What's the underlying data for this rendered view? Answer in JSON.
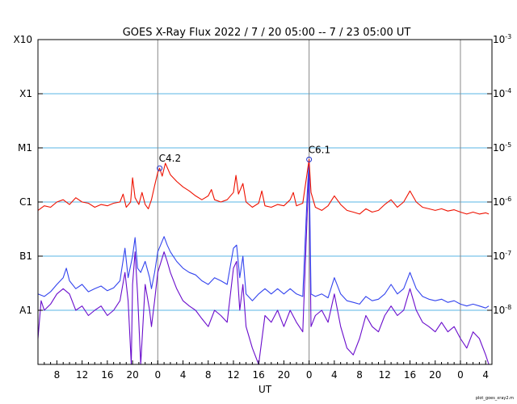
{
  "chart_data": {
    "type": "line",
    "title": "GOES X-Ray Flux   2022  /  7  /  20   05:00 --  7  /  23   05:00   UT",
    "xlabel": "UT",
    "ylabel": "",
    "y_scale": "log",
    "ylim": [
      1e-09,
      0.001
    ],
    "xlim_hours": [
      0,
      72
    ],
    "left_axis_labels": [
      "X10",
      "X1",
      "M1",
      "C1",
      "B1",
      "A1"
    ],
    "left_axis_values": [
      0.001,
      0.0001,
      1e-05,
      1e-06,
      1e-07,
      1e-08
    ],
    "right_axis_labels": [
      {
        "base": "10",
        "exp": "-3",
        "value": 0.001
      },
      {
        "base": "10",
        "exp": "-4",
        "value": 0.0001
      },
      {
        "base": "10",
        "exp": "-5",
        "value": 1e-05
      },
      {
        "base": "10",
        "exp": "-6",
        "value": 1e-06
      },
      {
        "base": "10",
        "exp": "-7",
        "value": 1e-07
      },
      {
        "base": "10",
        "exp": "-8",
        "value": 1e-08
      }
    ],
    "x_tick_labels": [
      {
        "h": 3,
        "label": "8"
      },
      {
        "h": 7,
        "label": "12"
      },
      {
        "h": 11,
        "label": "16"
      },
      {
        "h": 15,
        "label": "20"
      },
      {
        "h": 19,
        "label": "0"
      },
      {
        "h": 23,
        "label": "4"
      },
      {
        "h": 27,
        "label": "8"
      },
      {
        "h": 31,
        "label": "12"
      },
      {
        "h": 35,
        "label": "16"
      },
      {
        "h": 39,
        "label": "20"
      },
      {
        "h": 43,
        "label": "0"
      },
      {
        "h": 47,
        "label": "4"
      },
      {
        "h": 51,
        "label": "8"
      },
      {
        "h": 55,
        "label": "12"
      },
      {
        "h": 59,
        "label": "16"
      },
      {
        "h": 63,
        "label": "20"
      },
      {
        "h": 67,
        "label": "0"
      },
      {
        "h": 71,
        "label": "4"
      }
    ],
    "day_boundaries_hours": [
      19,
      43,
      67
    ],
    "annotations": [
      {
        "label": "C4.2",
        "h": 19.3,
        "value": 4.2e-06
      },
      {
        "label": "C6.1",
        "h": 43.0,
        "value": 6.1e-06
      }
    ],
    "series": [
      {
        "name": "",
        "color": "#ee1100",
        "points": [
          [
            0,
            7e-07
          ],
          [
            1,
            8.5e-07
          ],
          [
            2,
            8e-07
          ],
          [
            3,
            1e-06
          ],
          [
            4,
            1.1e-06
          ],
          [
            5,
            9e-07
          ],
          [
            6,
            1.2e-06
          ],
          [
            7,
            1e-06
          ],
          [
            8,
            9.5e-07
          ],
          [
            9,
            8e-07
          ],
          [
            10,
            9e-07
          ],
          [
            11,
            8.5e-07
          ],
          [
            12,
            9.5e-07
          ],
          [
            13,
            1e-06
          ],
          [
            13.5,
            1.4e-06
          ],
          [
            14,
            8e-07
          ],
          [
            14.7,
            1e-06
          ],
          [
            15,
            2.8e-06
          ],
          [
            15.4,
            1.2e-06
          ],
          [
            16,
            9e-07
          ],
          [
            16.5,
            1.5e-06
          ],
          [
            17,
            9e-07
          ],
          [
            17.5,
            7.5e-07
          ],
          [
            18,
            1.1e-06
          ],
          [
            18.5,
            2e-06
          ],
          [
            19,
            3.5e-06
          ],
          [
            19.3,
            4.2e-06
          ],
          [
            19.7,
            3e-06
          ],
          [
            20.2,
            5.2e-06
          ],
          [
            21,
            3.2e-06
          ],
          [
            22,
            2.4e-06
          ],
          [
            23,
            1.9e-06
          ],
          [
            24,
            1.6e-06
          ],
          [
            25,
            1.3e-06
          ],
          [
            26,
            1.1e-06
          ],
          [
            27,
            1.3e-06
          ],
          [
            27.5,
            1.7e-06
          ],
          [
            28,
            1.1e-06
          ],
          [
            29,
            1e-06
          ],
          [
            30,
            1.1e-06
          ],
          [
            31,
            1.5e-06
          ],
          [
            31.4,
            3.1e-06
          ],
          [
            31.8,
            1.4e-06
          ],
          [
            32.5,
            2.2e-06
          ],
          [
            33,
            1e-06
          ],
          [
            34,
            8e-07
          ],
          [
            35,
            9.5e-07
          ],
          [
            35.5,
            1.6e-06
          ],
          [
            36,
            8.5e-07
          ],
          [
            37,
            8e-07
          ],
          [
            38,
            9e-07
          ],
          [
            39,
            8.5e-07
          ],
          [
            40,
            1.1e-06
          ],
          [
            40.5,
            1.5e-06
          ],
          [
            41,
            8.5e-07
          ],
          [
            42,
            9.5e-07
          ],
          [
            42.7,
            3.5e-06
          ],
          [
            43.0,
            6.1e-06
          ],
          [
            43.3,
            1.5e-06
          ],
          [
            44,
            8e-07
          ],
          [
            45,
            7e-07
          ],
          [
            46,
            8.5e-07
          ],
          [
            47,
            1.3e-06
          ],
          [
            48,
            9e-07
          ],
          [
            49,
            7e-07
          ],
          [
            50,
            6.5e-07
          ],
          [
            51,
            6e-07
          ],
          [
            52,
            7.5e-07
          ],
          [
            53,
            6.5e-07
          ],
          [
            54,
            7e-07
          ],
          [
            55,
            9e-07
          ],
          [
            56,
            1.1e-06
          ],
          [
            57,
            8e-07
          ],
          [
            58,
            1e-06
          ],
          [
            59,
            1.6e-06
          ],
          [
            60,
            1e-06
          ],
          [
            61,
            8e-07
          ],
          [
            62,
            7.5e-07
          ],
          [
            63,
            7e-07
          ],
          [
            64,
            7.5e-07
          ],
          [
            65,
            6.8e-07
          ],
          [
            66,
            7.2e-07
          ],
          [
            67,
            6.5e-07
          ],
          [
            68,
            6e-07
          ],
          [
            69,
            6.5e-07
          ],
          [
            70,
            6e-07
          ],
          [
            71,
            6.3e-07
          ],
          [
            71.5,
            6e-07
          ]
        ]
      },
      {
        "name": "",
        "color": "#3344ee",
        "points": [
          [
            0,
            2e-08
          ],
          [
            1,
            1.8e-08
          ],
          [
            2,
            2.2e-08
          ],
          [
            3,
            3e-08
          ],
          [
            4,
            4e-08
          ],
          [
            4.5,
            6e-08
          ],
          [
            5,
            3.5e-08
          ],
          [
            6,
            2.5e-08
          ],
          [
            7,
            3e-08
          ],
          [
            8,
            2.2e-08
          ],
          [
            9,
            2.5e-08
          ],
          [
            10,
            2.8e-08
          ],
          [
            11,
            2.3e-08
          ],
          [
            12,
            2.6e-08
          ],
          [
            13,
            3.5e-08
          ],
          [
            13.8,
            1.4e-07
          ],
          [
            14.3,
            4e-08
          ],
          [
            15,
            1e-07
          ],
          [
            15.4,
            2.2e-07
          ],
          [
            15.8,
            6e-08
          ],
          [
            16.3,
            5e-08
          ],
          [
            17,
            8e-08
          ],
          [
            17.7,
            4e-08
          ],
          [
            18,
            2.5e-08
          ],
          [
            18.5,
            5e-08
          ],
          [
            19,
            1.2e-07
          ],
          [
            20,
            2.3e-07
          ],
          [
            20.5,
            1.6e-07
          ],
          [
            21,
            1.2e-07
          ],
          [
            22,
            8e-08
          ],
          [
            23,
            6e-08
          ],
          [
            24,
            5e-08
          ],
          [
            25,
            4.5e-08
          ],
          [
            26,
            3.5e-08
          ],
          [
            27,
            3e-08
          ],
          [
            28,
            4e-08
          ],
          [
            29,
            3.5e-08
          ],
          [
            30,
            3e-08
          ],
          [
            31,
            1.4e-07
          ],
          [
            31.5,
            1.6e-07
          ],
          [
            32,
            4e-08
          ],
          [
            32.5,
            1e-07
          ],
          [
            33,
            2e-08
          ],
          [
            34,
            1.5e-08
          ],
          [
            35,
            2e-08
          ],
          [
            36,
            2.5e-08
          ],
          [
            37,
            2e-08
          ],
          [
            38,
            2.5e-08
          ],
          [
            39,
            2e-08
          ],
          [
            40,
            2.5e-08
          ],
          [
            41,
            2e-08
          ],
          [
            42,
            1.8e-08
          ],
          [
            42.7,
            1.4e-06
          ],
          [
            43.0,
            6.1e-06
          ],
          [
            43.3,
            2e-08
          ],
          [
            44,
            1.8e-08
          ],
          [
            45,
            2e-08
          ],
          [
            46,
            1.7e-08
          ],
          [
            47,
            4e-08
          ],
          [
            48,
            2e-08
          ],
          [
            49,
            1.5e-08
          ],
          [
            50,
            1.4e-08
          ],
          [
            51,
            1.3e-08
          ],
          [
            52,
            1.8e-08
          ],
          [
            53,
            1.5e-08
          ],
          [
            54,
            1.6e-08
          ],
          [
            55,
            2e-08
          ],
          [
            56,
            3e-08
          ],
          [
            57,
            2e-08
          ],
          [
            58,
            2.5e-08
          ],
          [
            59,
            5e-08
          ],
          [
            60,
            2.5e-08
          ],
          [
            61,
            1.8e-08
          ],
          [
            62,
            1.6e-08
          ],
          [
            63,
            1.5e-08
          ],
          [
            64,
            1.6e-08
          ],
          [
            65,
            1.4e-08
          ],
          [
            66,
            1.5e-08
          ],
          [
            67,
            1.3e-08
          ],
          [
            68,
            1.2e-08
          ],
          [
            69,
            1.3e-08
          ],
          [
            70,
            1.2e-08
          ],
          [
            71,
            1.1e-08
          ],
          [
            71.5,
            1.2e-08
          ]
        ]
      },
      {
        "name": "",
        "color": "#6a0dcc",
        "points": [
          [
            0,
            3e-09
          ],
          [
            0.5,
            1.5e-08
          ],
          [
            1,
            1e-08
          ],
          [
            2,
            1.3e-08
          ],
          [
            3,
            2e-08
          ],
          [
            4,
            2.5e-08
          ],
          [
            5,
            2e-08
          ],
          [
            6,
            1e-08
          ],
          [
            7,
            1.2e-08
          ],
          [
            8,
            8e-09
          ],
          [
            9,
            1e-08
          ],
          [
            10,
            1.2e-08
          ],
          [
            11,
            8e-09
          ],
          [
            12,
            1e-08
          ],
          [
            13,
            1.5e-08
          ],
          [
            13.8,
            5e-08
          ],
          [
            14.3,
            1.5e-08
          ],
          [
            14.8,
            1e-09
          ],
          [
            15,
            3e-08
          ],
          [
            15.4,
            1.2e-07
          ],
          [
            15.8,
            2e-08
          ],
          [
            16.3,
            1e-09
          ],
          [
            17,
            3e-08
          ],
          [
            17.7,
            1e-08
          ],
          [
            18,
            5e-09
          ],
          [
            18.5,
            1.5e-08
          ],
          [
            19,
            5e-08
          ],
          [
            20,
            1.2e-07
          ],
          [
            20.5,
            8e-08
          ],
          [
            21,
            5e-08
          ],
          [
            22,
            2.5e-08
          ],
          [
            23,
            1.5e-08
          ],
          [
            24,
            1.2e-08
          ],
          [
            25,
            1e-08
          ],
          [
            26,
            7e-09
          ],
          [
            27,
            5e-09
          ],
          [
            28,
            1e-08
          ],
          [
            29,
            8e-09
          ],
          [
            30,
            6e-09
          ],
          [
            31,
            6e-08
          ],
          [
            31.5,
            8e-08
          ],
          [
            32,
            1e-08
          ],
          [
            32.5,
            3e-08
          ],
          [
            33,
            5e-09
          ],
          [
            34,
            2e-09
          ],
          [
            35,
            1e-09
          ],
          [
            36,
            8e-09
          ],
          [
            37,
            6e-09
          ],
          [
            38,
            1e-08
          ],
          [
            39,
            5e-09
          ],
          [
            40,
            1e-08
          ],
          [
            41,
            6e-09
          ],
          [
            42,
            4e-09
          ],
          [
            42.7,
            6e-07
          ],
          [
            43.0,
            4e-06
          ],
          [
            43.3,
            5e-09
          ],
          [
            44,
            8e-09
          ],
          [
            45,
            1e-08
          ],
          [
            46,
            6e-09
          ],
          [
            47,
            2e-08
          ],
          [
            48,
            5e-09
          ],
          [
            49,
            2e-09
          ],
          [
            50,
            1.5e-09
          ],
          [
            51,
            3e-09
          ],
          [
            52,
            8e-09
          ],
          [
            53,
            5e-09
          ],
          [
            54,
            4e-09
          ],
          [
            55,
            8e-09
          ],
          [
            56,
            1.2e-08
          ],
          [
            57,
            8e-09
          ],
          [
            58,
            1e-08
          ],
          [
            59,
            2.5e-08
          ],
          [
            60,
            1e-08
          ],
          [
            61,
            6e-09
          ],
          [
            62,
            5e-09
          ],
          [
            63,
            4e-09
          ],
          [
            64,
            6e-09
          ],
          [
            65,
            4e-09
          ],
          [
            66,
            5e-09
          ],
          [
            67,
            3e-09
          ],
          [
            68,
            2e-09
          ],
          [
            69,
            4e-09
          ],
          [
            70,
            3e-09
          ],
          [
            71,
            1.5e-09
          ],
          [
            71.5,
            1e-09
          ]
        ]
      }
    ],
    "colors": {
      "gridline": "#5ab4e6",
      "day_line": "#888888",
      "marker": "#2233cc"
    },
    "footer_text": "plot_goes_xray2.m"
  }
}
